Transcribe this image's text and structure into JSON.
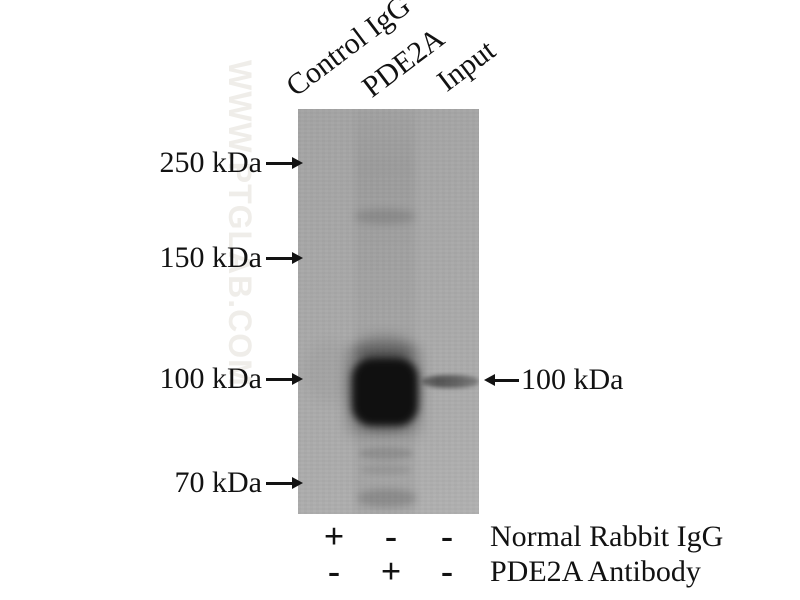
{
  "figure": {
    "watermark": "WWW.PTGLAB.COM",
    "lane_labels": [
      "Control IgG",
      "PDE2A",
      "Input"
    ],
    "markers": [
      {
        "label": "250 kDa"
      },
      {
        "label": "150 kDa"
      },
      {
        "label": "100 kDa"
      },
      {
        "label": "70 kDa"
      }
    ],
    "band_annotation": {
      "label": "100 kDa"
    },
    "conditions": {
      "rows": [
        {
          "symbols": [
            "+",
            "-",
            "-"
          ],
          "label": "Normal Rabbit IgG"
        },
        {
          "symbols": [
            "-",
            "+",
            "-"
          ],
          "label": "PDE2A Antibody"
        }
      ]
    },
    "bands": [
      {
        "lane": "PDE2A",
        "size": "~100 kDa",
        "intensity": "strong"
      },
      {
        "lane": "Input",
        "size": "~100 kDa",
        "intensity": "moderate"
      },
      {
        "lane": "PDE2A",
        "size": "~200 kDa",
        "intensity": "faint"
      }
    ],
    "colors": {
      "membrane": "#a9a9a9",
      "band": "#101010",
      "text": "#121212",
      "watermark": "#efede9"
    }
  }
}
